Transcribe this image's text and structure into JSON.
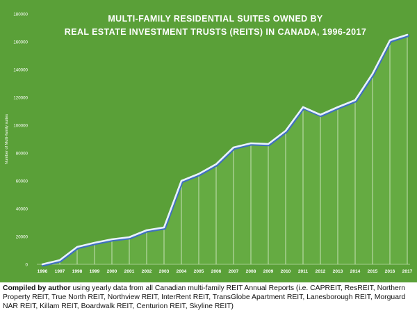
{
  "chart_data": {
    "type": "area",
    "title_lines": [
      "MULTI-FAMILY RESIDENTIAL SUITES OWNED BY",
      "REAL ESTATE INVESTMENT TRUSTS (REITS) IN CANADA, 1996-2017"
    ],
    "xlabel": "",
    "ylabel": "Number of Multi-family suites",
    "x": [
      "1996",
      "1997",
      "1998",
      "1999",
      "2000",
      "2001",
      "2002",
      "2003",
      "2004",
      "2005",
      "2006",
      "2007",
      "2008",
      "2009",
      "2010",
      "2011",
      "2012",
      "2013",
      "2014",
      "2015",
      "2016",
      "2017"
    ],
    "values": [
      0,
      3000,
      12500,
      15500,
      18000,
      19500,
      24500,
      26500,
      60000,
      65000,
      72000,
      84000,
      87000,
      86500,
      96000,
      113000,
      107500,
      113000,
      118000,
      137000,
      161000,
      165000
    ],
    "ylim": [
      0,
      180000
    ],
    "yticks": [
      0,
      20000,
      40000,
      60000,
      80000,
      100000,
      120000,
      140000,
      160000,
      180000
    ],
    "ytick_labels": [
      "0",
      "20000",
      "40000",
      "60000",
      "80000",
      "100000",
      "120000",
      "140000",
      "160000",
      "180000"
    ],
    "grid": false,
    "colors": {
      "background": "#5aa038",
      "area_fill": "#65ab42",
      "line": "#e8f1ff",
      "line_shadow": "#3f6fc0",
      "drop_lines": "#e6f2dc",
      "text": "#ffffff"
    }
  },
  "caption": {
    "bold": "Compiled by author",
    "text": " using yearly data from all Canadian multi-family REIT Annual Reports (i.e. CAPREIT, ResREIT, Northern Property REIT, True North REIT, Northview REIT, InterRent REIT, TransGlobe Apartment REIT, Lanesborough REIT, Morguard NAR REIT, Killam REIT, Boardwalk REIT, Centurion REIT, Skyline REIT)"
  }
}
